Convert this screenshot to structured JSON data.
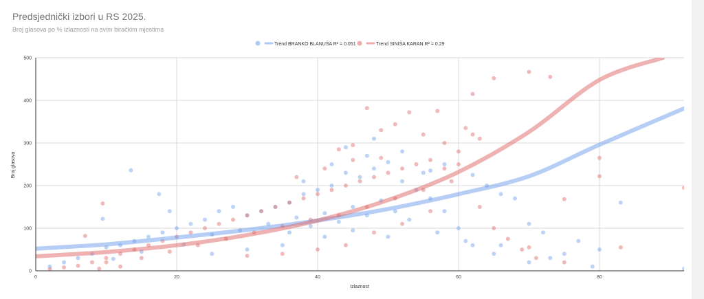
{
  "chart_data": {
    "type": "scatter",
    "title": "Predsjednički izbori u RS 2025.",
    "subtitle": "Broj glasova po % izlaznosti na svim biračkim mjestima",
    "xlabel": "Izlaznost",
    "ylabel": "Broj glasova",
    "xlim": [
      0,
      92
    ],
    "ylim": [
      0,
      500
    ],
    "x_ticks": [
      "0",
      "20",
      "40",
      "60",
      "80"
    ],
    "y_ticks": [
      "0",
      "100",
      "200",
      "300",
      "400",
      "500"
    ],
    "grid": true,
    "legend_position": "top-center",
    "series": [
      {
        "name": "BRANKO BLANUŠA",
        "color": "#6d9eeb",
        "trend_label": "Trend BRANKO BLANUŠA R² = 0.051",
        "trend_points": [
          [
            0,
            52
          ],
          [
            10,
            62
          ],
          [
            20,
            78
          ],
          [
            30,
            96
          ],
          [
            40,
            118
          ],
          [
            50,
            145
          ],
          [
            60,
            180
          ],
          [
            70,
            222
          ],
          [
            80,
            296
          ],
          [
            92,
            381
          ]
        ],
        "points": [
          [
            13.5,
            236
          ],
          [
            17.5,
            180
          ],
          [
            9.5,
            122
          ],
          [
            19,
            140
          ],
          [
            48,
            310
          ],
          [
            44,
            290
          ],
          [
            52,
            280
          ],
          [
            56,
            235
          ],
          [
            58,
            250
          ],
          [
            62,
            225
          ],
          [
            64,
            200
          ],
          [
            66,
            180
          ],
          [
            68,
            170
          ],
          [
            70,
            110
          ],
          [
            72,
            90
          ],
          [
            75,
            40
          ],
          [
            77,
            70
          ],
          [
            80,
            50
          ],
          [
            83,
            160
          ],
          [
            92,
            5
          ],
          [
            62,
            60
          ],
          [
            65,
            40
          ],
          [
            70,
            20
          ],
          [
            60,
            100
          ],
          [
            58,
            140
          ],
          [
            56,
            170
          ],
          [
            54,
            190
          ],
          [
            52,
            210
          ],
          [
            48,
            240
          ],
          [
            46,
            220
          ],
          [
            44,
            230
          ],
          [
            42,
            200
          ],
          [
            40,
            190
          ],
          [
            38,
            180
          ],
          [
            36,
            160
          ],
          [
            34,
            150
          ],
          [
            32,
            140
          ],
          [
            30,
            130
          ],
          [
            28,
            150
          ],
          [
            26,
            140
          ],
          [
            24,
            120
          ],
          [
            22,
            110
          ],
          [
            20,
            100
          ],
          [
            18,
            90
          ],
          [
            16,
            80
          ],
          [
            14,
            70
          ],
          [
            12,
            60
          ],
          [
            10,
            55
          ],
          [
            8,
            40
          ],
          [
            6,
            30
          ],
          [
            4,
            20
          ],
          [
            2,
            10
          ],
          [
            11,
            28
          ],
          [
            15,
            45
          ],
          [
            21,
            62
          ],
          [
            25,
            85
          ],
          [
            29,
            95
          ],
          [
            33,
            110
          ],
          [
            37,
            125
          ],
          [
            41,
            135
          ],
          [
            45,
            150
          ],
          [
            49,
            165
          ],
          [
            53,
            120
          ],
          [
            57,
            90
          ],
          [
            61,
            70
          ],
          [
            66,
            60
          ],
          [
            73,
            30
          ],
          [
            79,
            10
          ],
          [
            41,
            80
          ],
          [
            45,
            95
          ],
          [
            50,
            80
          ],
          [
            35,
            60
          ],
          [
            30,
            50
          ],
          [
            25,
            40
          ],
          [
            38,
            210
          ],
          [
            42,
            250
          ],
          [
            47,
            270
          ],
          [
            50,
            255
          ],
          [
            55,
            230
          ],
          [
            36,
            90
          ],
          [
            39,
            105
          ],
          [
            43,
            115
          ],
          [
            47,
            130
          ],
          [
            51,
            140
          ]
        ]
      },
      {
        "name": "SINIŠA KARAN",
        "color": "#e06666",
        "trend_label": "Trend SINIŠA KARAN R² = 0.29",
        "trend_points": [
          [
            0,
            34
          ],
          [
            10,
            44
          ],
          [
            20,
            60
          ],
          [
            30,
            84
          ],
          [
            40,
            118
          ],
          [
            50,
            166
          ],
          [
            60,
            232
          ],
          [
            70,
            326
          ],
          [
            80,
            448
          ],
          [
            89,
            500
          ]
        ],
        "points": [
          [
            9.5,
            158
          ],
          [
            47,
            382
          ],
          [
            53,
            372
          ],
          [
            57,
            375
          ],
          [
            62,
            415
          ],
          [
            65,
            452
          ],
          [
            70,
            467
          ],
          [
            73,
            455
          ],
          [
            61,
            335
          ],
          [
            62,
            320
          ],
          [
            63,
            310
          ],
          [
            51,
            344
          ],
          [
            49,
            330
          ],
          [
            55,
            320
          ],
          [
            58,
            300
          ],
          [
            60,
            280
          ],
          [
            45,
            295
          ],
          [
            43,
            285
          ],
          [
            80,
            265
          ],
          [
            80,
            222
          ],
          [
            75,
            168
          ],
          [
            92,
            195
          ],
          [
            83,
            55
          ],
          [
            75,
            20
          ],
          [
            70,
            55
          ],
          [
            60,
            250
          ],
          [
            58,
            240
          ],
          [
            56,
            260
          ],
          [
            54,
            250
          ],
          [
            52,
            240
          ],
          [
            50,
            230
          ],
          [
            48,
            220
          ],
          [
            46,
            210
          ],
          [
            44,
            200
          ],
          [
            42,
            190
          ],
          [
            40,
            180
          ],
          [
            38,
            170
          ],
          [
            36,
            160
          ],
          [
            34,
            150
          ],
          [
            32,
            140
          ],
          [
            30,
            130
          ],
          [
            28,
            120
          ],
          [
            26,
            110
          ],
          [
            24,
            100
          ],
          [
            22,
            90
          ],
          [
            20,
            80
          ],
          [
            18,
            70
          ],
          [
            16,
            60
          ],
          [
            14,
            50
          ],
          [
            12,
            40
          ],
          [
            10,
            30
          ],
          [
            8,
            20
          ],
          [
            6,
            12
          ],
          [
            4,
            8
          ],
          [
            2,
            4
          ],
          [
            7,
            82
          ],
          [
            10,
            20
          ],
          [
            12,
            10
          ],
          [
            9,
            5
          ],
          [
            15,
            30
          ],
          [
            19,
            45
          ],
          [
            23,
            60
          ],
          [
            27,
            75
          ],
          [
            31,
            90
          ],
          [
            35,
            105
          ],
          [
            39,
            120
          ],
          [
            43,
            130
          ],
          [
            47,
            150
          ],
          [
            51,
            170
          ],
          [
            55,
            190
          ],
          [
            59,
            210
          ],
          [
            63,
            150
          ],
          [
            65,
            100
          ],
          [
            67,
            75
          ],
          [
            69,
            50
          ],
          [
            71,
            30
          ],
          [
            44,
            60
          ],
          [
            48,
            90
          ],
          [
            52,
            110
          ],
          [
            56,
            140
          ],
          [
            40,
            50
          ],
          [
            35,
            40
          ],
          [
            30,
            35
          ],
          [
            37,
            220
          ],
          [
            41,
            240
          ],
          [
            45,
            260
          ],
          [
            49,
            265
          ]
        ]
      }
    ]
  }
}
